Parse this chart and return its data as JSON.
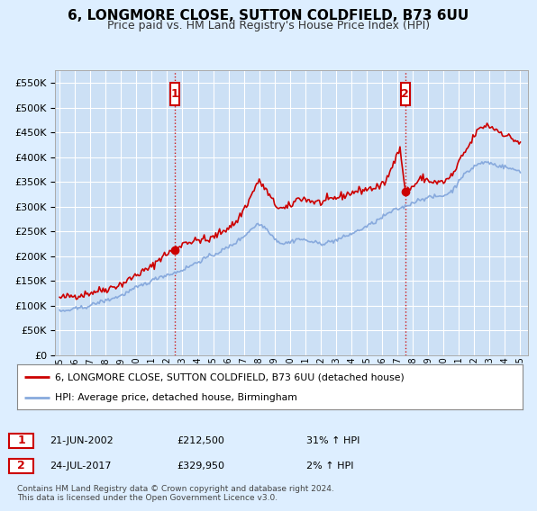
{
  "title": "6, LONGMORE CLOSE, SUTTON COLDFIELD, B73 6UU",
  "subtitle": "Price paid vs. HM Land Registry's House Price Index (HPI)",
  "legend_line1": "6, LONGMORE CLOSE, SUTTON COLDFIELD, B73 6UU (detached house)",
  "legend_line2": "HPI: Average price, detached house, Birmingham",
  "sale1_date": "21-JUN-2002",
  "sale1_price": "£212,500",
  "sale1_hpi": "31% ↑ HPI",
  "sale2_date": "24-JUL-2017",
  "sale2_price": "£329,950",
  "sale2_hpi": "2% ↑ HPI",
  "footer": "Contains HM Land Registry data © Crown copyright and database right 2024.\nThis data is licensed under the Open Government Licence v3.0.",
  "red_color": "#cc0000",
  "blue_color": "#88aadd",
  "background_color": "#ddeeff",
  "plot_bg_color": "#cce0f5",
  "ylim": [
    0,
    575000
  ],
  "yticks": [
    0,
    50000,
    100000,
    150000,
    200000,
    250000,
    300000,
    350000,
    400000,
    450000,
    500000,
    550000
  ],
  "marker1_x": 2002.5,
  "marker1_y": 212500,
  "marker2_x": 2017.5,
  "marker2_y": 329950,
  "xlim_left": 1994.7,
  "xlim_right": 2025.5
}
